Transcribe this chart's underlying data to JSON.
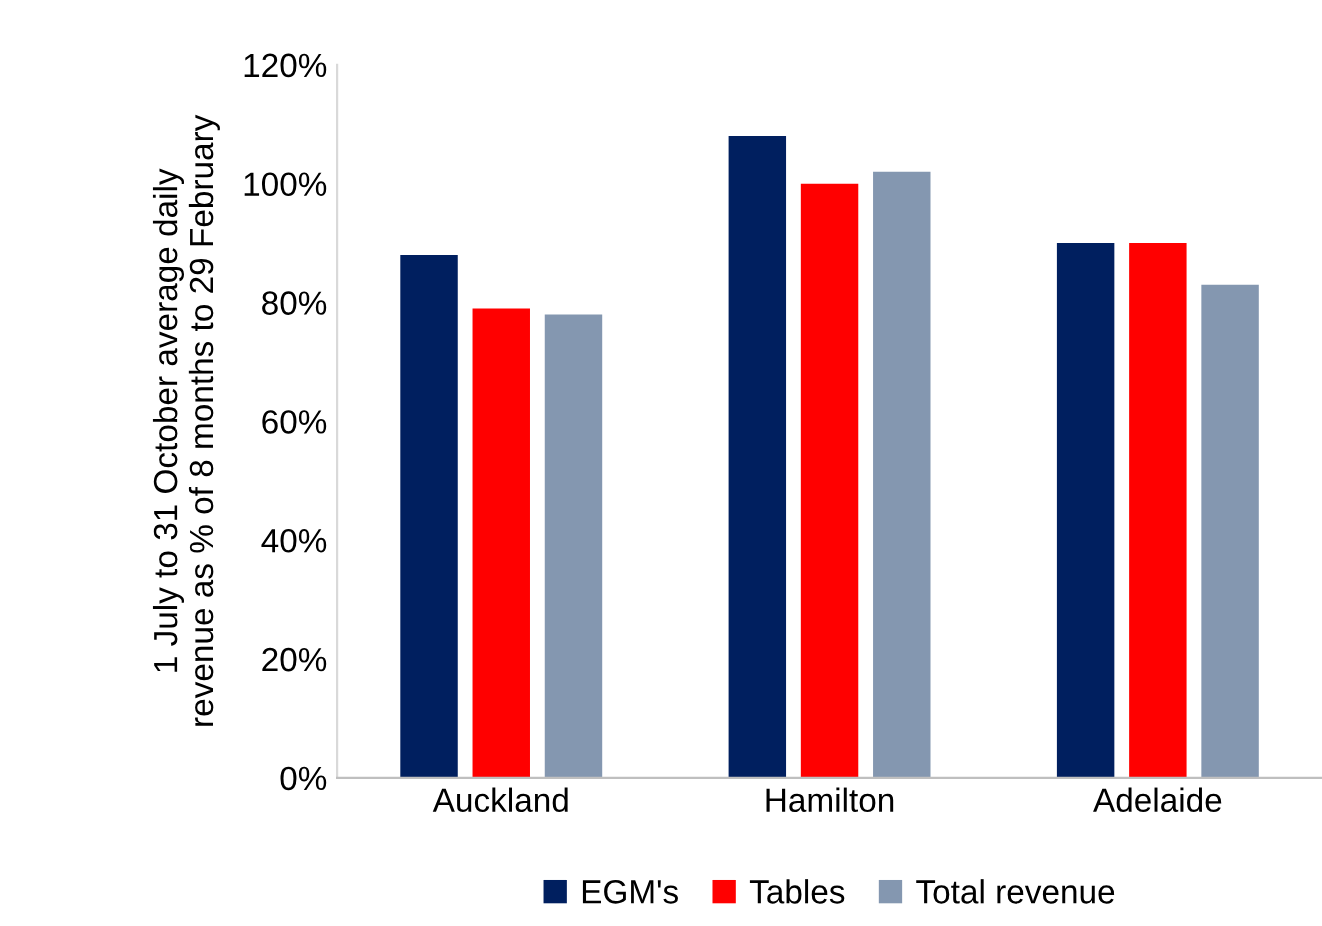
{
  "chart_data": {
    "type": "bar",
    "ylabel": "1 July to 31 October average daily\nrevenue as % of 8 months to 29 February",
    "categories": [
      "Auckland",
      "Hamilton",
      "Adelaide"
    ],
    "series": [
      {
        "name": "EGM's",
        "color": "#001f5f",
        "values": [
          88,
          108,
          90
        ]
      },
      {
        "name": "Tables",
        "color": "#ff0000",
        "values": [
          79,
          100,
          90
        ]
      },
      {
        "name": "Total revenue",
        "color": "#8497b0",
        "values": [
          78,
          102,
          83
        ]
      }
    ],
    "ylim": [
      0,
      120
    ],
    "yticks": [
      {
        "value": 0,
        "label": "0%"
      },
      {
        "value": 20,
        "label": "20%"
      },
      {
        "value": 40,
        "label": "40%"
      },
      {
        "value": 60,
        "label": "60%"
      },
      {
        "value": 80,
        "label": "80%"
      },
      {
        "value": 100,
        "label": "100%"
      },
      {
        "value": 120,
        "label": "120%"
      }
    ],
    "grid": false,
    "legend": "bottom"
  }
}
